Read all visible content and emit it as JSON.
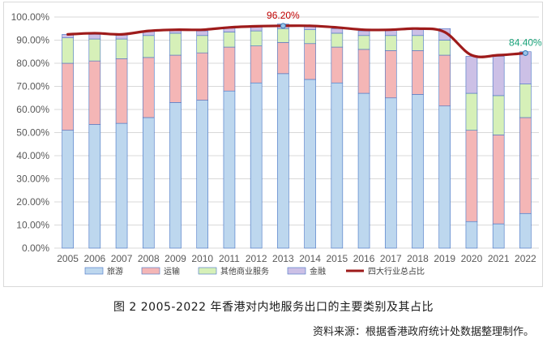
{
  "chart_data": {
    "type": "bar",
    "stacked": true,
    "categories": [
      "2005",
      "2006",
      "2007",
      "2008",
      "2009",
      "2010",
      "2011",
      "2012",
      "2013",
      "2014",
      "2015",
      "2016",
      "2017",
      "2018",
      "2019",
      "2020",
      "2021",
      "2022"
    ],
    "ylim": [
      0,
      100
    ],
    "yticks": [
      "0.00%",
      "10.00%",
      "20.00%",
      "30.00%",
      "40.00%",
      "50.00%",
      "60.00%",
      "70.00%",
      "80.00%",
      "90.00%",
      "100.00%"
    ],
    "series": [
      {
        "name": "旅游",
        "color": "#bdd7ee",
        "values": [
          51,
          53.5,
          54,
          56.5,
          63,
          64,
          68,
          71.5,
          75.5,
          73,
          71.5,
          67,
          65,
          66.5,
          61.5,
          11.5,
          10.5,
          15
        ]
      },
      {
        "name": "运输",
        "color": "#f4b6b6",
        "values": [
          29,
          27.5,
          28,
          26,
          20.5,
          20.5,
          19,
          16,
          13.5,
          15.5,
          15.5,
          19,
          20.5,
          19,
          22,
          39.5,
          38.5,
          41.5
        ]
      },
      {
        "name": "其他商业服务",
        "color": "#d6f0b8",
        "values": [
          11,
          9.5,
          8.5,
          9.5,
          9.5,
          7.5,
          6.5,
          6.5,
          6,
          6,
          6,
          6,
          6.5,
          6.5,
          6.5,
          16,
          17,
          14.5
        ]
      },
      {
        "name": "金融",
        "color": "#ccc0e6",
        "values": [
          1.5,
          2,
          2,
          2,
          1.5,
          2,
          2,
          2,
          2,
          2,
          2,
          2,
          2.5,
          3,
          5,
          16,
          17,
          14
        ]
      }
    ],
    "line": {
      "name": "四大行业总占比",
      "color": "#9e1b1b",
      "values": [
        92.5,
        93,
        92.5,
        94,
        94.5,
        94.5,
        95.5,
        96,
        96.2,
        96.2,
        95.5,
        94.5,
        94.5,
        95,
        93.5,
        83.5,
        83.5,
        84.4
      ]
    },
    "annotations": [
      {
        "category": "2013",
        "text": "96.20%",
        "color": "#c00000"
      },
      {
        "category": "2022",
        "text": "84.40%",
        "color": "#1aa37a"
      }
    ],
    "legend_position": "bottom"
  },
  "caption": "图 2   2005-2022 年香港对内地服务出口的主要类别及其占比",
  "source": "资料来源：根据香港政府统计处数据整理制作。"
}
